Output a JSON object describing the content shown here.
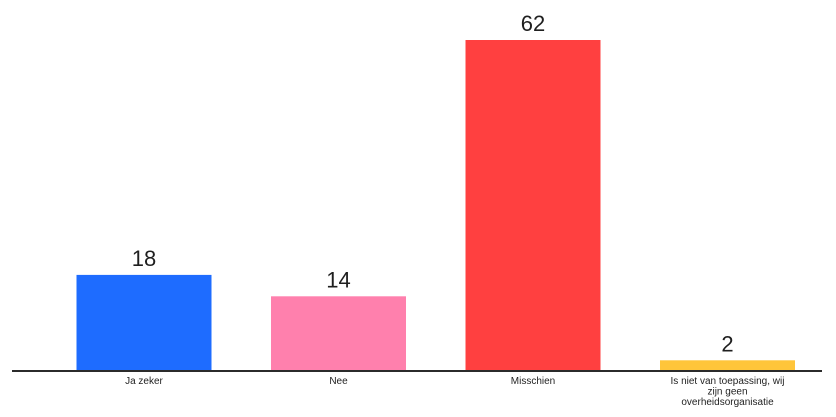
{
  "chart_data": {
    "type": "bar",
    "categories": [
      "Ja zeker",
      "Nee",
      "Misschien",
      "Is niet van toepassing, wij zijn geen overheidsorganisatie"
    ],
    "category_label_lines": [
      [
        "Ja zeker"
      ],
      [
        "Nee"
      ],
      [
        "Misschien"
      ],
      [
        "Is niet van toepassing, wij",
        "zijn geen",
        "overheidsorganisatie"
      ]
    ],
    "values": [
      18,
      14,
      62,
      2
    ],
    "colors": [
      "#1e6cff",
      "#ff80ad",
      "#ff4040",
      "#ffc53a"
    ],
    "ylim": [
      0,
      62
    ],
    "grid": false,
    "data_labels": true
  }
}
